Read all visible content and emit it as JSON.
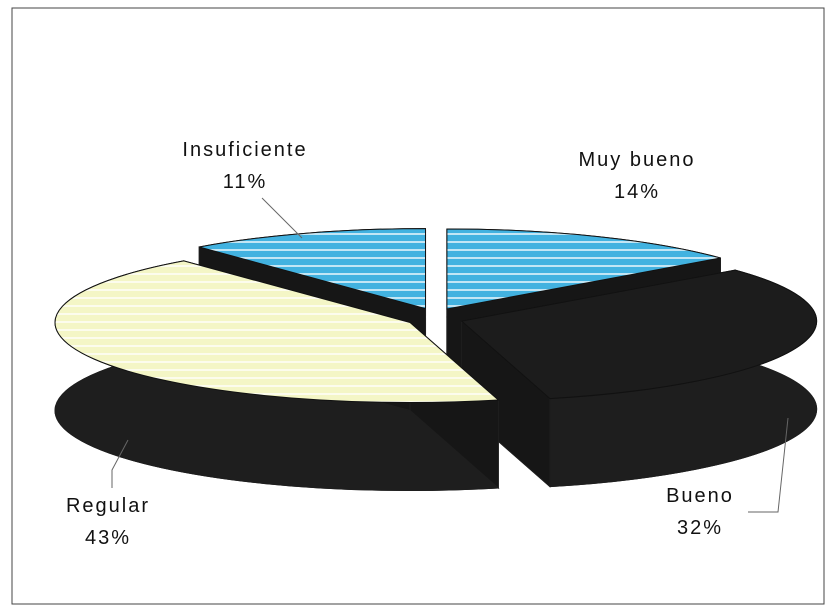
{
  "chart_data": {
    "type": "pie3d",
    "categories": [
      "Muy bueno",
      "Bueno",
      "Regular",
      "Insuficiente"
    ],
    "values": [
      14,
      32,
      43,
      11
    ],
    "value_labels": [
      "14%",
      "32%",
      "43%",
      "11%"
    ],
    "colors": [
      "#42b2e0",
      "#1c1c1c",
      "#f4f6c6",
      "#42b2e0"
    ]
  }
}
